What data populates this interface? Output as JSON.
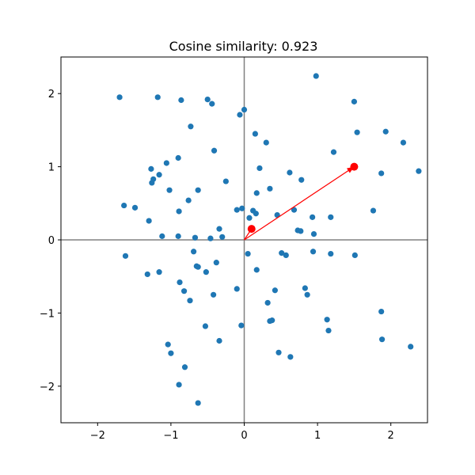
{
  "chart_data": {
    "type": "scatter",
    "title": "Cosine similarity: 0.923",
    "xlim": [
      -2.5,
      2.5
    ],
    "ylim": [
      -2.5,
      2.5
    ],
    "xticks": [
      -2,
      -1,
      0,
      1,
      2
    ],
    "yticks": [
      -2,
      -1,
      0,
      1,
      2
    ],
    "xtick_labels": [
      "−2",
      "−1",
      "0",
      "1",
      "2"
    ],
    "ytick_labels": [
      "−2",
      "−1",
      "0",
      "1",
      "2"
    ],
    "grid": false,
    "point_color": "#1f77b4",
    "highlight_color": "#ff0000",
    "axis_line_color": "#808080",
    "points": [
      [
        -1.7,
        1.95
      ],
      [
        -1.18,
        1.95
      ],
      [
        -0.86,
        1.91
      ],
      [
        -0.5,
        1.92
      ],
      [
        -0.44,
        1.86
      ],
      [
        -0.06,
        1.71
      ],
      [
        0.0,
        1.78
      ],
      [
        0.98,
        2.24
      ],
      [
        1.5,
        1.89
      ],
      [
        -0.73,
        1.55
      ],
      [
        0.15,
        1.45
      ],
      [
        0.3,
        1.33
      ],
      [
        1.54,
        1.47
      ],
      [
        1.93,
        1.48
      ],
      [
        2.17,
        1.33
      ],
      [
        -0.41,
        1.22
      ],
      [
        1.22,
        1.2
      ],
      [
        -0.9,
        1.12
      ],
      [
        -1.06,
        1.05
      ],
      [
        -1.27,
        0.97
      ],
      [
        0.21,
        0.98
      ],
      [
        0.62,
        0.92
      ],
      [
        1.87,
        0.91
      ],
      [
        2.38,
        0.94
      ],
      [
        -1.16,
        0.89
      ],
      [
        -1.24,
        0.83
      ],
      [
        -1.26,
        0.78
      ],
      [
        0.78,
        0.82
      ],
      [
        -0.25,
        0.8
      ],
      [
        -1.02,
        0.68
      ],
      [
        -0.63,
        0.68
      ],
      [
        0.35,
        0.7
      ],
      [
        0.17,
        0.64
      ],
      [
        -0.76,
        0.54
      ],
      [
        -1.64,
        0.47
      ],
      [
        -1.49,
        0.44
      ],
      [
        -0.03,
        0.43
      ],
      [
        -0.1,
        0.41
      ],
      [
        0.12,
        0.4
      ],
      [
        0.16,
        0.36
      ],
      [
        -0.89,
        0.39
      ],
      [
        0.68,
        0.41
      ],
      [
        1.76,
        0.4
      ],
      [
        0.45,
        0.34
      ],
      [
        0.07,
        0.3
      ],
      [
        0.93,
        0.31
      ],
      [
        1.18,
        0.31
      ],
      [
        -1.3,
        0.26
      ],
      [
        -0.34,
        0.15
      ],
      [
        0.73,
        0.13
      ],
      [
        0.77,
        0.12
      ],
      [
        0.95,
        0.08
      ],
      [
        -1.12,
        0.05
      ],
      [
        -0.9,
        0.05
      ],
      [
        -0.67,
        0.03
      ],
      [
        -0.46,
        0.02
      ],
      [
        -0.3,
        0.04
      ],
      [
        -1.62,
        -0.22
      ],
      [
        -0.69,
        -0.16
      ],
      [
        0.05,
        -0.19
      ],
      [
        0.51,
        -0.18
      ],
      [
        0.57,
        -0.21
      ],
      [
        0.94,
        -0.16
      ],
      [
        1.18,
        -0.19
      ],
      [
        1.51,
        -0.21
      ],
      [
        -0.38,
        -0.31
      ],
      [
        -0.65,
        -0.36
      ],
      [
        -0.63,
        -0.37
      ],
      [
        -1.32,
        -0.47
      ],
      [
        -1.16,
        -0.44
      ],
      [
        -0.52,
        -0.44
      ],
      [
        0.17,
        -0.41
      ],
      [
        -0.88,
        -0.58
      ],
      [
        -0.82,
        -0.7
      ],
      [
        0.83,
        -0.66
      ],
      [
        0.42,
        -0.69
      ],
      [
        0.86,
        -0.75
      ],
      [
        -0.74,
        -0.83
      ],
      [
        -0.42,
        -0.75
      ],
      [
        -0.1,
        -0.67
      ],
      [
        0.32,
        -0.86
      ],
      [
        0.38,
        -1.1
      ],
      [
        0.35,
        -1.11
      ],
      [
        -0.53,
        -1.18
      ],
      [
        -0.04,
        -1.17
      ],
      [
        1.13,
        -1.09
      ],
      [
        1.15,
        -1.24
      ],
      [
        1.87,
        -0.98
      ],
      [
        -1.04,
        -1.43
      ],
      [
        -1.0,
        -1.55
      ],
      [
        -0.34,
        -1.38
      ],
      [
        0.47,
        -1.54
      ],
      [
        0.63,
        -1.6
      ],
      [
        1.88,
        -1.36
      ],
      [
        2.27,
        -1.46
      ],
      [
        -0.81,
        -1.74
      ],
      [
        -0.89,
        -1.98
      ],
      [
        -0.63,
        -2.23
      ]
    ],
    "vector_tip": [
      1.5,
      1.0
    ],
    "vector_small": [
      0.1,
      0.15
    ]
  }
}
